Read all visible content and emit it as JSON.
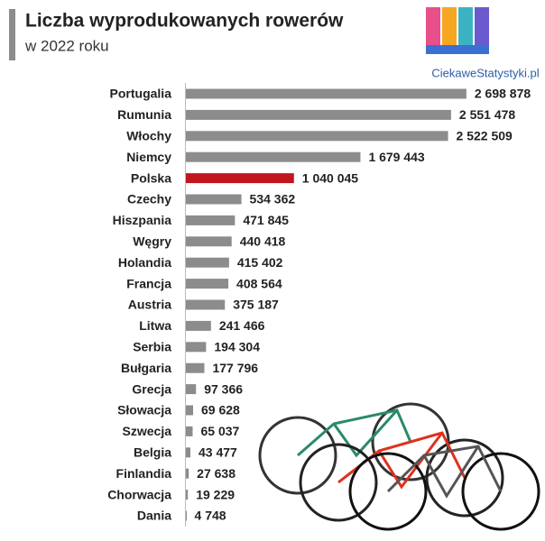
{
  "chart_data": {
    "type": "bar",
    "orientation": "horizontal",
    "title": "Liczba wyprodukowanych rowerów",
    "subtitle": "w 2022 roku",
    "source": "CiekaweStatystyki.pl",
    "categories": [
      "Portugalia",
      "Rumunia",
      "Włochy",
      "Niemcy",
      "Polska",
      "Czechy",
      "Hiszpania",
      "Węgry",
      "Holandia",
      "Francja",
      "Austria",
      "Litwa",
      "Serbia",
      "Bułgaria",
      "Grecja",
      "Słowacja",
      "Szwecja",
      "Belgia",
      "Finlandia",
      "Chorwacja",
      "Dania"
    ],
    "values": [
      2698878,
      2551478,
      2522509,
      1679443,
      1040045,
      534362,
      471845,
      440418,
      415402,
      408564,
      375187,
      241466,
      194304,
      177796,
      97366,
      69628,
      65037,
      43477,
      27638,
      19229,
      4748
    ],
    "value_labels": [
      "2 698 878",
      "2 551 478",
      "2 522 509",
      "1 679 443",
      "1 040 045",
      "534 362",
      "471 845",
      "440 418",
      "415 402",
      "408 564",
      "375 187",
      "241 466",
      "194 304",
      "177 796",
      "97 366",
      "69 628",
      "65 037",
      "43 477",
      "27 638",
      "19 229",
      "4 748"
    ],
    "colors": [
      "#8c8c8c",
      "#8c8c8c",
      "#8c8c8c",
      "#8c8c8c",
      "#c0171c",
      "#8c8c8c",
      "#8c8c8c",
      "#8c8c8c",
      "#8c8c8c",
      "#8c8c8c",
      "#8c8c8c",
      "#8c8c8c",
      "#8c8c8c",
      "#8c8c8c",
      "#8c8c8c",
      "#8c8c8c",
      "#8c8c8c",
      "#8c8c8c",
      "#8c8c8c",
      "#8c8c8c",
      "#8c8c8c"
    ],
    "xlim": [
      0,
      2700000
    ]
  }
}
